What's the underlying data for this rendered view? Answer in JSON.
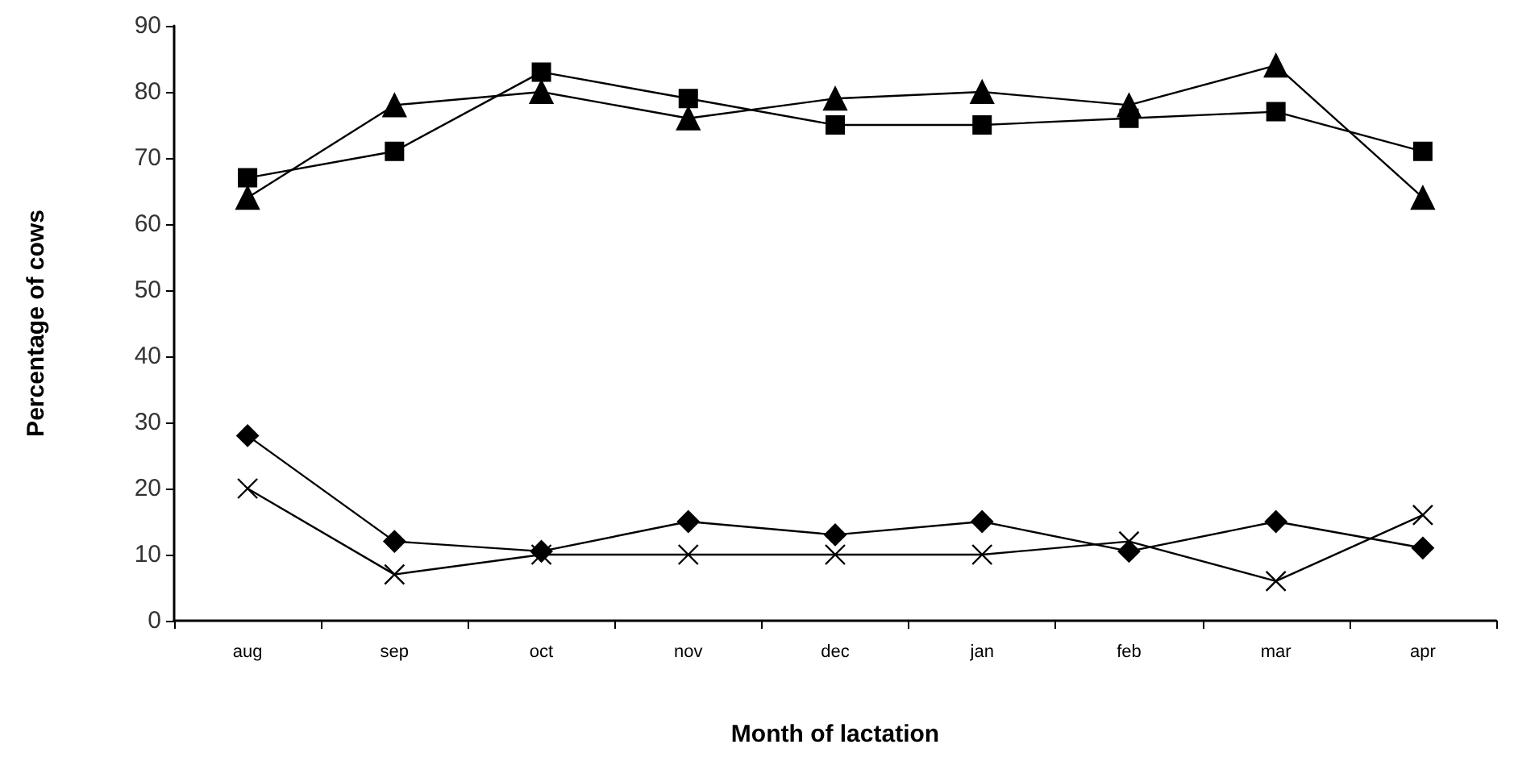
{
  "chart_data": {
    "type": "line",
    "xlabel": "Month of lactation",
    "ylabel": "Percentage of cows",
    "categories": [
      "aug",
      "sep",
      "oct",
      "nov",
      "dec",
      "jan",
      "feb",
      "mar",
      "apr"
    ],
    "ylim": [
      0,
      90
    ],
    "yticks": [
      0,
      10,
      20,
      30,
      40,
      50,
      60,
      70,
      80,
      90
    ],
    "line_style": "solid",
    "series": [
      {
        "color": "#000000",
        "marker": "square",
        "values": [
          67,
          71,
          83,
          79,
          75,
          75,
          76,
          77,
          71
        ]
      },
      {
        "color": "#000000",
        "marker": "triangle",
        "values": [
          64,
          78,
          80,
          76,
          79,
          80,
          78,
          84,
          64
        ]
      },
      {
        "color": "#000000",
        "marker": "diamond",
        "values": [
          28,
          12,
          10.5,
          15,
          13,
          15,
          10.5,
          15,
          11
        ]
      },
      {
        "color": "#000000",
        "marker": "cross",
        "values": [
          20,
          7,
          10,
          10,
          10,
          10,
          12,
          6,
          16
        ]
      }
    ]
  }
}
